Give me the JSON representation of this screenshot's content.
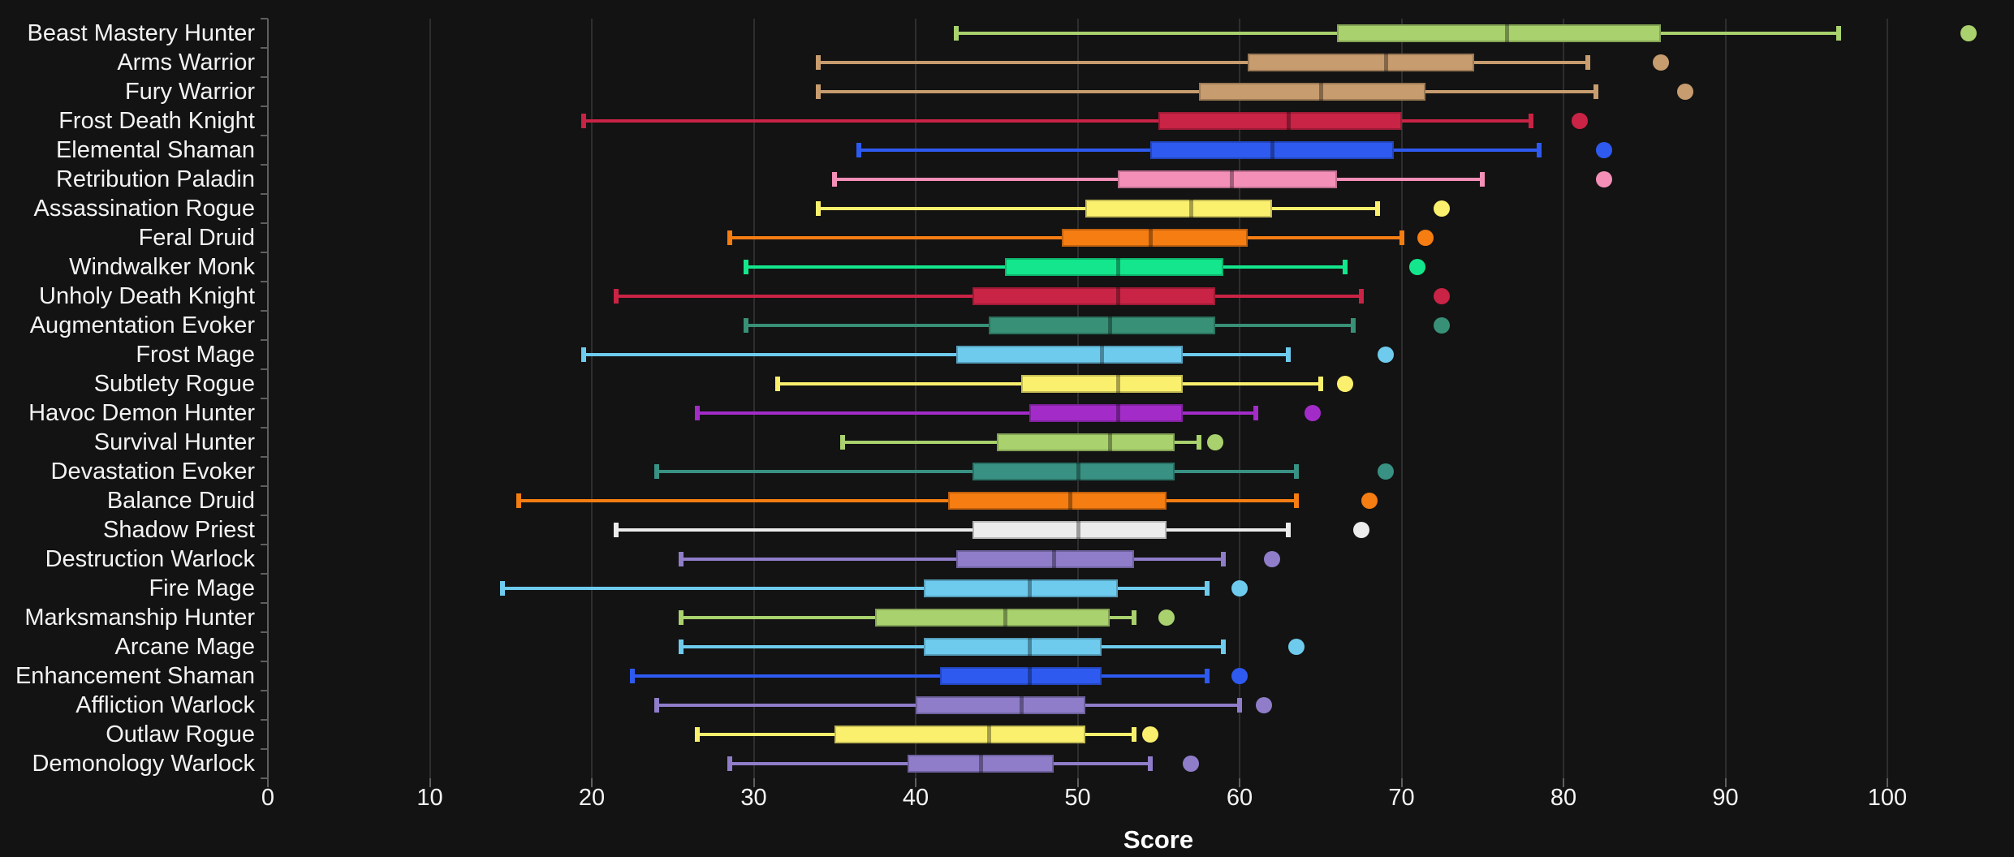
{
  "figure": {
    "background": "#131313",
    "grid_color": "#2e2e2e",
    "axis_color": "#5f5f5f",
    "label_color": "#f3f3f3"
  },
  "chart_data": {
    "type": "boxplot",
    "orientation": "horizontal",
    "title": "",
    "xlabel": "Score",
    "ylabel": "",
    "xlim": [
      0,
      107.8
    ],
    "xticks": [
      0,
      10,
      20,
      30,
      40,
      50,
      60,
      70,
      80,
      90,
      100
    ],
    "grid": "vertical-only",
    "legend": "none",
    "categories": [
      "Beast Mastery Hunter",
      "Arms Warrior",
      "Fury Warrior",
      "Frost Death Knight",
      "Elemental Shaman",
      "Retribution Paladin",
      "Assassination Rogue",
      "Feral Druid",
      "Windwalker Monk",
      "Unholy Death Knight",
      "Augmentation Evoker",
      "Frost Mage",
      "Subtlety Rogue",
      "Havoc Demon Hunter",
      "Survival Hunter",
      "Devastation Evoker",
      "Balance Druid",
      "Shadow Priest",
      "Destruction Warlock",
      "Fire Mage",
      "Marksmanship Hunter",
      "Arcane Mage",
      "Enhancement Shaman",
      "Affliction Warlock",
      "Outlaw Rogue",
      "Demonology Warlock"
    ],
    "series": [
      {
        "label": "Beast Mastery Hunter",
        "color": "#a9d16e",
        "low": 42.5,
        "q1": 66,
        "median": 76.5,
        "q3": 86,
        "high": 97,
        "outlier": 105
      },
      {
        "label": "Arms Warrior",
        "color": "#c79c6e",
        "low": 34,
        "q1": 60.5,
        "median": 69,
        "q3": 74.5,
        "high": 81.5,
        "outlier": 86
      },
      {
        "label": "Fury Warrior",
        "color": "#c79c6e",
        "low": 34,
        "q1": 57.5,
        "median": 65,
        "q3": 71.5,
        "high": 82,
        "outlier": 87.5
      },
      {
        "label": "Frost Death Knight",
        "color": "#c92345",
        "low": 19.5,
        "q1": 55,
        "median": 63,
        "q3": 70,
        "high": 78,
        "outlier": 81
      },
      {
        "label": "Elemental Shaman",
        "color": "#2e5af0",
        "low": 36.5,
        "q1": 54.5,
        "median": 62,
        "q3": 69.5,
        "high": 78.5,
        "outlier": 82.5
      },
      {
        "label": "Retribution Paladin",
        "color": "#f48fb8",
        "low": 35,
        "q1": 52.5,
        "median": 59.5,
        "q3": 66,
        "high": 75,
        "outlier": 82.5
      },
      {
        "label": "Assassination Rogue",
        "color": "#fbf06d",
        "low": 34,
        "q1": 50.5,
        "median": 57,
        "q3": 62,
        "high": 68.5,
        "outlier": 72.5
      },
      {
        "label": "Feral Druid",
        "color": "#f57d12",
        "low": 28.5,
        "q1": 49,
        "median": 54.5,
        "q3": 60.5,
        "high": 70,
        "outlier": 71.5
      },
      {
        "label": "Windwalker Monk",
        "color": "#13e68c",
        "low": 29.5,
        "q1": 45.5,
        "median": 52.5,
        "q3": 59,
        "high": 66.5,
        "outlier": 71
      },
      {
        "label": "Unholy Death Knight",
        "color": "#c92345",
        "low": 21.5,
        "q1": 43.5,
        "median": 52.5,
        "q3": 58.5,
        "high": 67.5,
        "outlier": 72.5
      },
      {
        "label": "Augmentation Evoker",
        "color": "#389177",
        "low": 29.5,
        "q1": 44.5,
        "median": 52,
        "q3": 58.5,
        "high": 67,
        "outlier": 72.5
      },
      {
        "label": "Frost Mage",
        "color": "#6ecbee",
        "low": 19.5,
        "q1": 42.5,
        "median": 51.5,
        "q3": 56.5,
        "high": 63,
        "outlier": 69
      },
      {
        "label": "Subtlety Rogue",
        "color": "#fbf06d",
        "low": 31.5,
        "q1": 46.5,
        "median": 52.5,
        "q3": 56.5,
        "high": 65,
        "outlier": 66.5
      },
      {
        "label": "Havoc Demon Hunter",
        "color": "#a32cc9",
        "low": 26.5,
        "q1": 47,
        "median": 52.5,
        "q3": 56.5,
        "high": 61,
        "outlier": 64.5
      },
      {
        "label": "Survival Hunter",
        "color": "#a9d16e",
        "low": 35.5,
        "q1": 45,
        "median": 52,
        "q3": 56,
        "high": 57.5,
        "outlier": 58.5
      },
      {
        "label": "Devastation Evoker",
        "color": "#389183",
        "low": 24,
        "q1": 43.5,
        "median": 50,
        "q3": 56,
        "high": 63.5,
        "outlier": 69
      },
      {
        "label": "Balance Druid",
        "color": "#f57d12",
        "low": 15.5,
        "q1": 42,
        "median": 49.5,
        "q3": 55.5,
        "high": 63.5,
        "outlier": 68
      },
      {
        "label": "Shadow Priest",
        "color": "#ececec",
        "low": 21.5,
        "q1": 43.5,
        "median": 50,
        "q3": 55.5,
        "high": 63,
        "outlier": 67.5
      },
      {
        "label": "Destruction Warlock",
        "color": "#8f7dc9",
        "low": 25.5,
        "q1": 42.5,
        "median": 48.5,
        "q3": 53.5,
        "high": 59,
        "outlier": 62
      },
      {
        "label": "Fire Mage",
        "color": "#6ecbee",
        "low": 14.5,
        "q1": 40.5,
        "median": 47,
        "q3": 52.5,
        "high": 58,
        "outlier": 60
      },
      {
        "label": "Marksmanship Hunter",
        "color": "#a9d16e",
        "low": 25.5,
        "q1": 37.5,
        "median": 45.5,
        "q3": 52,
        "high": 53.5,
        "outlier": 55.5
      },
      {
        "label": "Arcane Mage",
        "color": "#6ecbee",
        "low": 25.5,
        "q1": 40.5,
        "median": 47,
        "q3": 51.5,
        "high": 59,
        "outlier": 63.5
      },
      {
        "label": "Enhancement Shaman",
        "color": "#2e5af0",
        "low": 22.5,
        "q1": 41.5,
        "median": 47,
        "q3": 51.5,
        "high": 58,
        "outlier": 60
      },
      {
        "label": "Affliction Warlock",
        "color": "#8f7dc9",
        "low": 24,
        "q1": 40,
        "median": 46.5,
        "q3": 50.5,
        "high": 60,
        "outlier": 61.5
      },
      {
        "label": "Outlaw Rogue",
        "color": "#fbf06d",
        "low": 26.5,
        "q1": 35,
        "median": 44.5,
        "q3": 50.5,
        "high": 53.5,
        "outlier": 54.5
      },
      {
        "label": "Demonology Warlock",
        "color": "#8f7dc9",
        "low": 28.5,
        "q1": 39.5,
        "median": 44,
        "q3": 48.5,
        "high": 54.5,
        "outlier": 57
      }
    ]
  }
}
